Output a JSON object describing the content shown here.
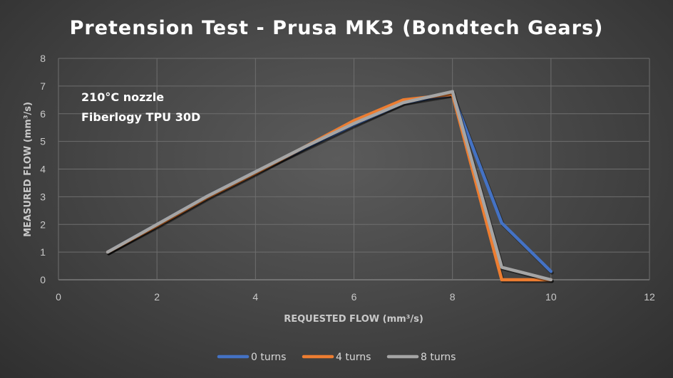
{
  "chart_data": {
    "type": "line",
    "title": "Pretension Test - Prusa MK3 (Bondtech Gears)",
    "xlabel": "REQUESTED FLOW (mm³/s)",
    "ylabel": "MEASURED FLOW (mm³/s)",
    "xlim": [
      0,
      12
    ],
    "ylim": [
      0,
      8
    ],
    "xticks": [
      0,
      2,
      4,
      6,
      8,
      10,
      12
    ],
    "yticks": [
      0,
      1,
      2,
      3,
      4,
      5,
      6,
      7,
      8
    ],
    "grid": true,
    "legend_position": "bottom",
    "annotations": [
      "210°C nozzle",
      "Fiberlogy TPU 30D"
    ],
    "series": [
      {
        "name": "0 turns",
        "color": "#4472C4",
        "x": [
          1,
          2,
          3,
          4,
          5,
          6,
          7,
          8,
          9,
          10
        ],
        "y": [
          1.0,
          2.0,
          3.0,
          3.9,
          4.75,
          5.6,
          6.4,
          6.7,
          2.05,
          0.3
        ]
      },
      {
        "name": "4 turns",
        "color": "#ED7D31",
        "x": [
          1,
          2,
          3,
          4,
          5,
          6,
          7,
          8,
          9,
          10
        ],
        "y": [
          1.0,
          1.95,
          2.95,
          3.85,
          4.8,
          5.75,
          6.5,
          6.7,
          0.0,
          0.0
        ]
      },
      {
        "name": "8 turns",
        "color": "#A5A5A5",
        "x": [
          1,
          2,
          3,
          4,
          5,
          6,
          7,
          8,
          9,
          10
        ],
        "y": [
          1.0,
          2.0,
          3.0,
          3.9,
          4.8,
          5.65,
          6.4,
          6.8,
          0.45,
          0.0
        ]
      }
    ]
  }
}
